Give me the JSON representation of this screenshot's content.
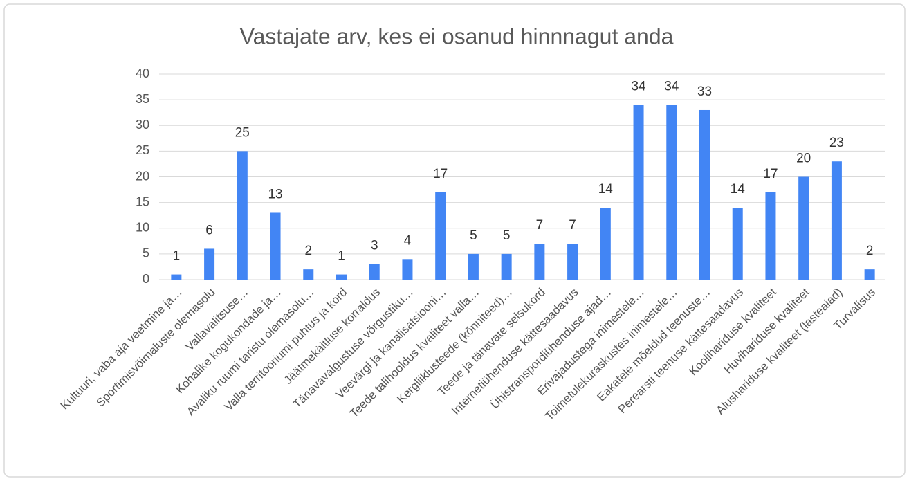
{
  "chart_data": {
    "type": "bar",
    "title": "Vastajate arv, kes ei osanud hinnnagut anda",
    "categories": [
      "Kultuuri, vaba aja veetmine ja…",
      "Sportimisvõimaluste olemasolu",
      "Vallavalitsuse…",
      "Kohalike kogukondade ja…",
      "Avaliku ruumi taristu olemasolu…",
      "Valla territooriumi puhtus ja kord",
      "Jäätmekäitluse korraldus",
      "Tänavavalgustuse võrgustiku…",
      "Veevärgi ja kanalisatsiooni…",
      "Teede talihooldus kvaliteet valla…",
      "Kergliiklusteede (kõnniteed)…",
      "Teede ja tänavate seisukord",
      "Internetiühenduse kättesaadavus",
      "Ühistranspordiühenduse ajad…",
      "Erivajadustega inimestele…",
      "Toimetulekuraskustes inimestele…",
      "Eakatele mõeldud teenuste…",
      "Perearsti teenuse kättesaadavus",
      "Koolihariduse kvaliteet",
      "Huvihariduse kvaliteet",
      "Alushariduse kvaliteet (lasteaiad)",
      "Turvalisus"
    ],
    "values": [
      1,
      6,
      25,
      13,
      2,
      1,
      3,
      4,
      17,
      5,
      5,
      7,
      7,
      14,
      34,
      34,
      33,
      14,
      17,
      20,
      23,
      2
    ],
    "color": "#4285f4",
    "ylim": [
      0,
      40
    ],
    "yticks": [
      0,
      5,
      10,
      15,
      20,
      25,
      30,
      35,
      40
    ],
    "grid": true
  }
}
